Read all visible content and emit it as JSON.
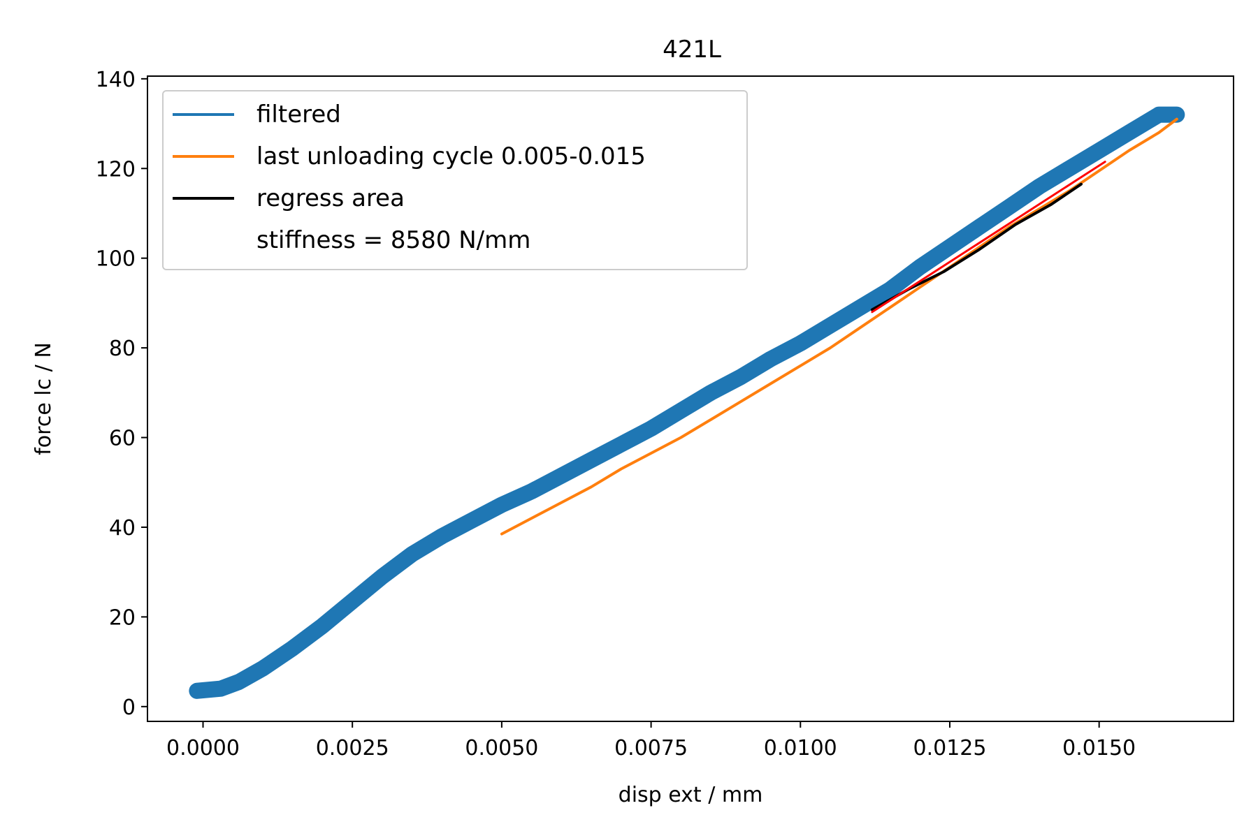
{
  "chart_data": {
    "type": "line",
    "title": "421L",
    "xlabel": "disp ext / mm",
    "ylabel": "force lc / N",
    "xlim": [
      -0.00093,
      0.01725
    ],
    "ylim": [
      -3.3,
      140.6
    ],
    "xticks": [
      0.0,
      0.0025,
      0.005,
      0.0075,
      0.01,
      0.0125,
      0.015
    ],
    "xtick_labels": [
      "0.0000",
      "0.0025",
      "0.0050",
      "0.0075",
      "0.0100",
      "0.0125",
      "0.0150"
    ],
    "yticks": [
      0,
      20,
      40,
      60,
      80,
      100,
      120,
      140
    ],
    "ytick_labels": [
      "0",
      "20",
      "40",
      "60",
      "80",
      "100",
      "120",
      "140"
    ],
    "grid": false,
    "legend_position": "upper-left",
    "legend": [
      {
        "label": "filtered",
        "color": "#1f77b4"
      },
      {
        "label": "last unloading cycle 0.005-0.015",
        "color": "#ff7f0e"
      },
      {
        "label": "regress area",
        "color": "#000000"
      },
      {
        "label": "stiffness = 8580 N/mm",
        "color": "none"
      }
    ],
    "series": [
      {
        "name": "filtered",
        "color": "#1f77b4",
        "x": [
          -0.0001,
          0.0003,
          0.0006,
          0.001,
          0.0015,
          0.002,
          0.0025,
          0.003,
          0.0035,
          0.004,
          0.0045,
          0.005,
          0.0055,
          0.006,
          0.0065,
          0.007,
          0.0075,
          0.008,
          0.0085,
          0.009,
          0.0095,
          0.01,
          0.0105,
          0.011,
          0.0115,
          0.012,
          0.0125,
          0.013,
          0.0135,
          0.014,
          0.0145,
          0.015,
          0.0155,
          0.016,
          0.0163
        ],
        "y": [
          3.5,
          4,
          5.5,
          8.5,
          13,
          18,
          23.5,
          29,
          34,
          38,
          41.5,
          45,
          48,
          51.5,
          55,
          58.5,
          62,
          66,
          70,
          73.5,
          77.5,
          81,
          85,
          89,
          93,
          98,
          102.5,
          107,
          111.5,
          116,
          120,
          124,
          128,
          132,
          132
        ],
        "band_half_width": 1.8
      },
      {
        "name": "last unloading cycle 0.005-0.015",
        "color": "#ff7f0e",
        "x": [
          0.005,
          0.0055,
          0.006,
          0.0065,
          0.007,
          0.0075,
          0.008,
          0.0085,
          0.009,
          0.0095,
          0.01,
          0.0105,
          0.011,
          0.0115,
          0.012,
          0.0125,
          0.013,
          0.0135,
          0.014,
          0.0145,
          0.015,
          0.0155,
          0.016,
          0.0163
        ],
        "y": [
          38.5,
          42,
          45.5,
          49,
          53,
          56.5,
          60,
          64,
          68,
          72,
          76,
          80,
          84.5,
          89,
          93.5,
          98,
          102.5,
          107,
          111,
          115,
          119.5,
          124,
          128,
          131
        ]
      },
      {
        "name": "regress area",
        "color": "#000000",
        "x": [
          0.0112,
          0.0118,
          0.0124,
          0.013,
          0.0136,
          0.0142,
          0.0147
        ],
        "y": [
          88.5,
          93,
          97,
          102,
          107.5,
          112,
          116.5
        ]
      },
      {
        "name": "fit",
        "color": "#ff0000",
        "x": [
          0.0112,
          0.0151
        ],
        "y": [
          88,
          121.5
        ]
      }
    ]
  }
}
